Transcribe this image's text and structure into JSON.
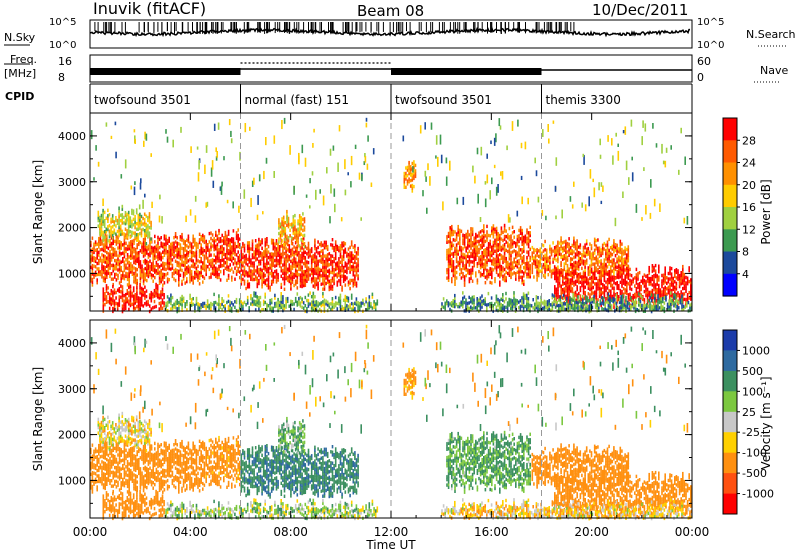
{
  "header": {
    "station": "Inuvik (fitACF)",
    "beam": "Beam 08",
    "date": "10/Dec/2011"
  },
  "status_panel": {
    "nsky_label": "N.Sky",
    "nsky_ticks": [
      "10^5",
      "10^0"
    ],
    "nsearch_label": "N.Search",
    "nsearch_ticks": [
      "10^5",
      "10^0"
    ],
    "freq_label_1": "Freq.",
    "freq_label_2": "[MHz]",
    "freq_ticks": [
      "16",
      "8"
    ],
    "nave_label": "Nave",
    "nave_ticks": [
      "60",
      "0"
    ],
    "cpid_label": "CPID"
  },
  "cpid_segments": [
    {
      "label": "twofsound 3501",
      "start_hour": 0,
      "end_hour": 6
    },
    {
      "label": "normal (fast) 151",
      "start_hour": 6,
      "end_hour": 12
    },
    {
      "label": "twofsound 3501",
      "start_hour": 12,
      "end_hour": 18
    },
    {
      "label": "themis 3300",
      "start_hour": 18,
      "end_hour": 24
    }
  ],
  "power_colorbar": {
    "title": "Power [dB]",
    "ticks": [
      "28",
      "24",
      "20",
      "16",
      "12",
      "8",
      "4"
    ],
    "colors": [
      "#ff0000",
      "#ff5a00",
      "#ff9000",
      "#ffcc00",
      "#a0d040",
      "#3c9a50",
      "#1c4a9c",
      "#0000ff"
    ]
  },
  "velocity_colorbar": {
    "title": "Velocity [m s⁻¹]",
    "ticks": [
      "1000",
      "500",
      "100",
      "25",
      "-25",
      "-100",
      "-500",
      "-1000"
    ],
    "colors": [
      "#1c3caa",
      "#2e6aa0",
      "#3c9060",
      "#7cc840",
      "#c8c8c8",
      "#ffd000",
      "#ff9010",
      "#ff5010",
      "#ff0000"
    ]
  },
  "chart_data": {
    "type": "heatmap",
    "title": "",
    "xlabel": "Time UT",
    "ylabel": "Slant Range [km]",
    "x_ticks": [
      "00:00",
      "04:00",
      "08:00",
      "12:00",
      "16:00",
      "20:00",
      "00:00"
    ],
    "xlim_hours": [
      0,
      24
    ],
    "y_ticks": [
      "4000",
      "3000",
      "2000",
      "1000"
    ],
    "ylim_km": [
      180,
      4500
    ],
    "panels": [
      {
        "quantity": "Power [dB]",
        "scatter_regions": [
          {
            "t0": 0.0,
            "t1": 4.6,
            "r0": 900,
            "r1": 1800,
            "power_db": 24,
            "velocity": -300
          },
          {
            "t0": 0.3,
            "t1": 2.5,
            "r0": 1800,
            "r1": 2400,
            "power_db": 14,
            "velocity": -30
          },
          {
            "t0": 0.5,
            "t1": 3.0,
            "r0": 300,
            "r1": 700,
            "power_db": 28,
            "velocity": -250
          },
          {
            "t0": 4.6,
            "t1": 6.0,
            "r0": 1000,
            "r1": 1900,
            "power_db": 26,
            "velocity": -200
          },
          {
            "t0": 6.0,
            "t1": 10.7,
            "r0": 800,
            "r1": 1700,
            "power_db": 26,
            "velocity": 400
          },
          {
            "t0": 7.5,
            "t1": 8.6,
            "r0": 1750,
            "r1": 2300,
            "power_db": 18,
            "velocity": 80
          },
          {
            "t0": 3.0,
            "t1": 11.5,
            "r0": 250,
            "r1": 500,
            "power_db": 10,
            "velocity": 40
          },
          {
            "t0": 12.5,
            "t1": 13.0,
            "r0": 2900,
            "r1": 3400,
            "power_db": 20,
            "velocity": -150
          },
          {
            "t0": 14.2,
            "t1": 17.6,
            "r0": 900,
            "r1": 2000,
            "power_db": 24,
            "velocity": 120
          },
          {
            "t0": 17.6,
            "t1": 21.5,
            "r0": 1000,
            "r1": 1700,
            "power_db": 22,
            "velocity": -250
          },
          {
            "t0": 18.5,
            "t1": 24.0,
            "r0": 400,
            "r1": 1100,
            "power_db": 28,
            "velocity": -300
          },
          {
            "t0": 14.0,
            "t1": 24.0,
            "r0": 200,
            "r1": 500,
            "power_db": 8,
            "velocity": -60
          }
        ]
      },
      {
        "quantity": "Velocity [m s⁻¹]"
      }
    ]
  }
}
